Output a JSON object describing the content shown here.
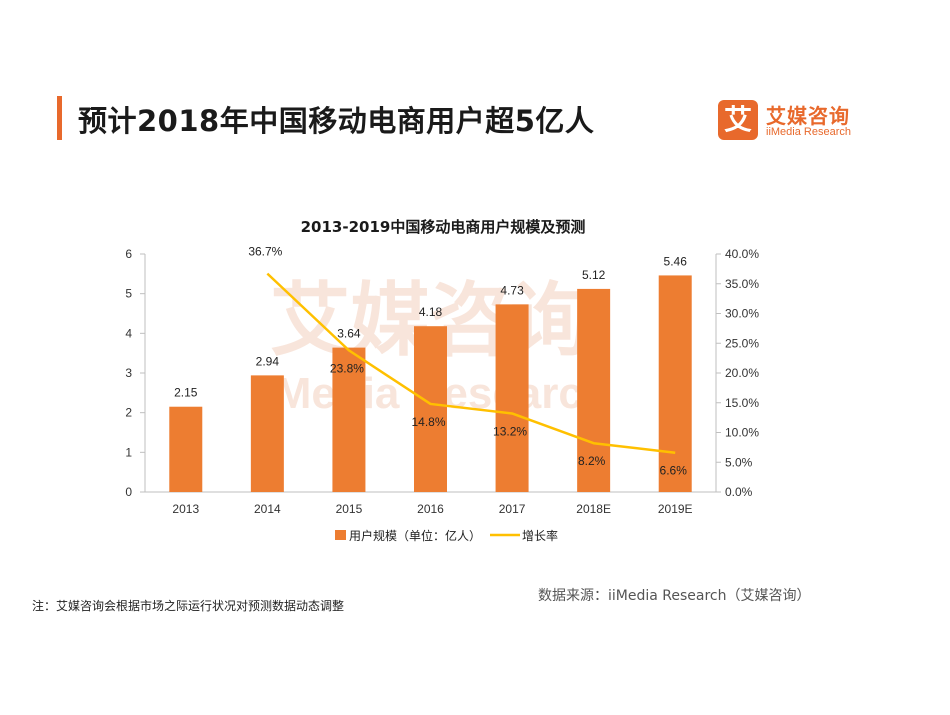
{
  "header": {
    "title": "预计2018年中国移动电商用户超5亿人"
  },
  "logo": {
    "mark": "艾",
    "name_cn": "艾媒咨询",
    "name_en": "iiMedia Research",
    "watermark_cn": "艾媒咨询",
    "watermark_en": "iiMedia Research"
  },
  "chart_data": {
    "type": "bar",
    "title": "2013-2019中国移动电商用户规模及预测",
    "categories": [
      "2013",
      "2014",
      "2015",
      "2016",
      "2017",
      "2018E",
      "2019E"
    ],
    "series": [
      {
        "name": "用户规模（单位：亿人）",
        "type": "bar",
        "axis": "left",
        "values": [
          2.15,
          2.94,
          3.64,
          4.18,
          4.73,
          5.12,
          5.46
        ],
        "labels": [
          "2.15",
          "2.94",
          "3.64",
          "4.18",
          "4.73",
          "5.12",
          "5.46"
        ],
        "color": "#ed7d31"
      },
      {
        "name": "增长率",
        "type": "line",
        "axis": "right",
        "values": [
          null,
          36.7,
          23.8,
          14.8,
          13.2,
          8.2,
          6.6
        ],
        "labels": [
          "",
          "36.7%",
          "23.8%",
          "14.8%",
          "13.2%",
          "8.2%",
          "6.6%"
        ],
        "color": "#ffc000"
      }
    ],
    "y_left": {
      "min": 0,
      "max": 6,
      "ticks": [
        "0",
        "1",
        "2",
        "3",
        "4",
        "5",
        "6"
      ]
    },
    "y_right": {
      "min": 0,
      "max": 40,
      "ticks": [
        "0.0%",
        "5.0%",
        "10.0%",
        "15.0%",
        "20.0%",
        "25.0%",
        "30.0%",
        "35.0%",
        "40.0%"
      ]
    },
    "grid": false,
    "legend_position": "bottom"
  },
  "footer": {
    "note": "注：艾媒咨询会根据市场之际运行状况对预测数据动态调整",
    "source": "数据来源：iiMedia Research（艾媒咨询）"
  }
}
